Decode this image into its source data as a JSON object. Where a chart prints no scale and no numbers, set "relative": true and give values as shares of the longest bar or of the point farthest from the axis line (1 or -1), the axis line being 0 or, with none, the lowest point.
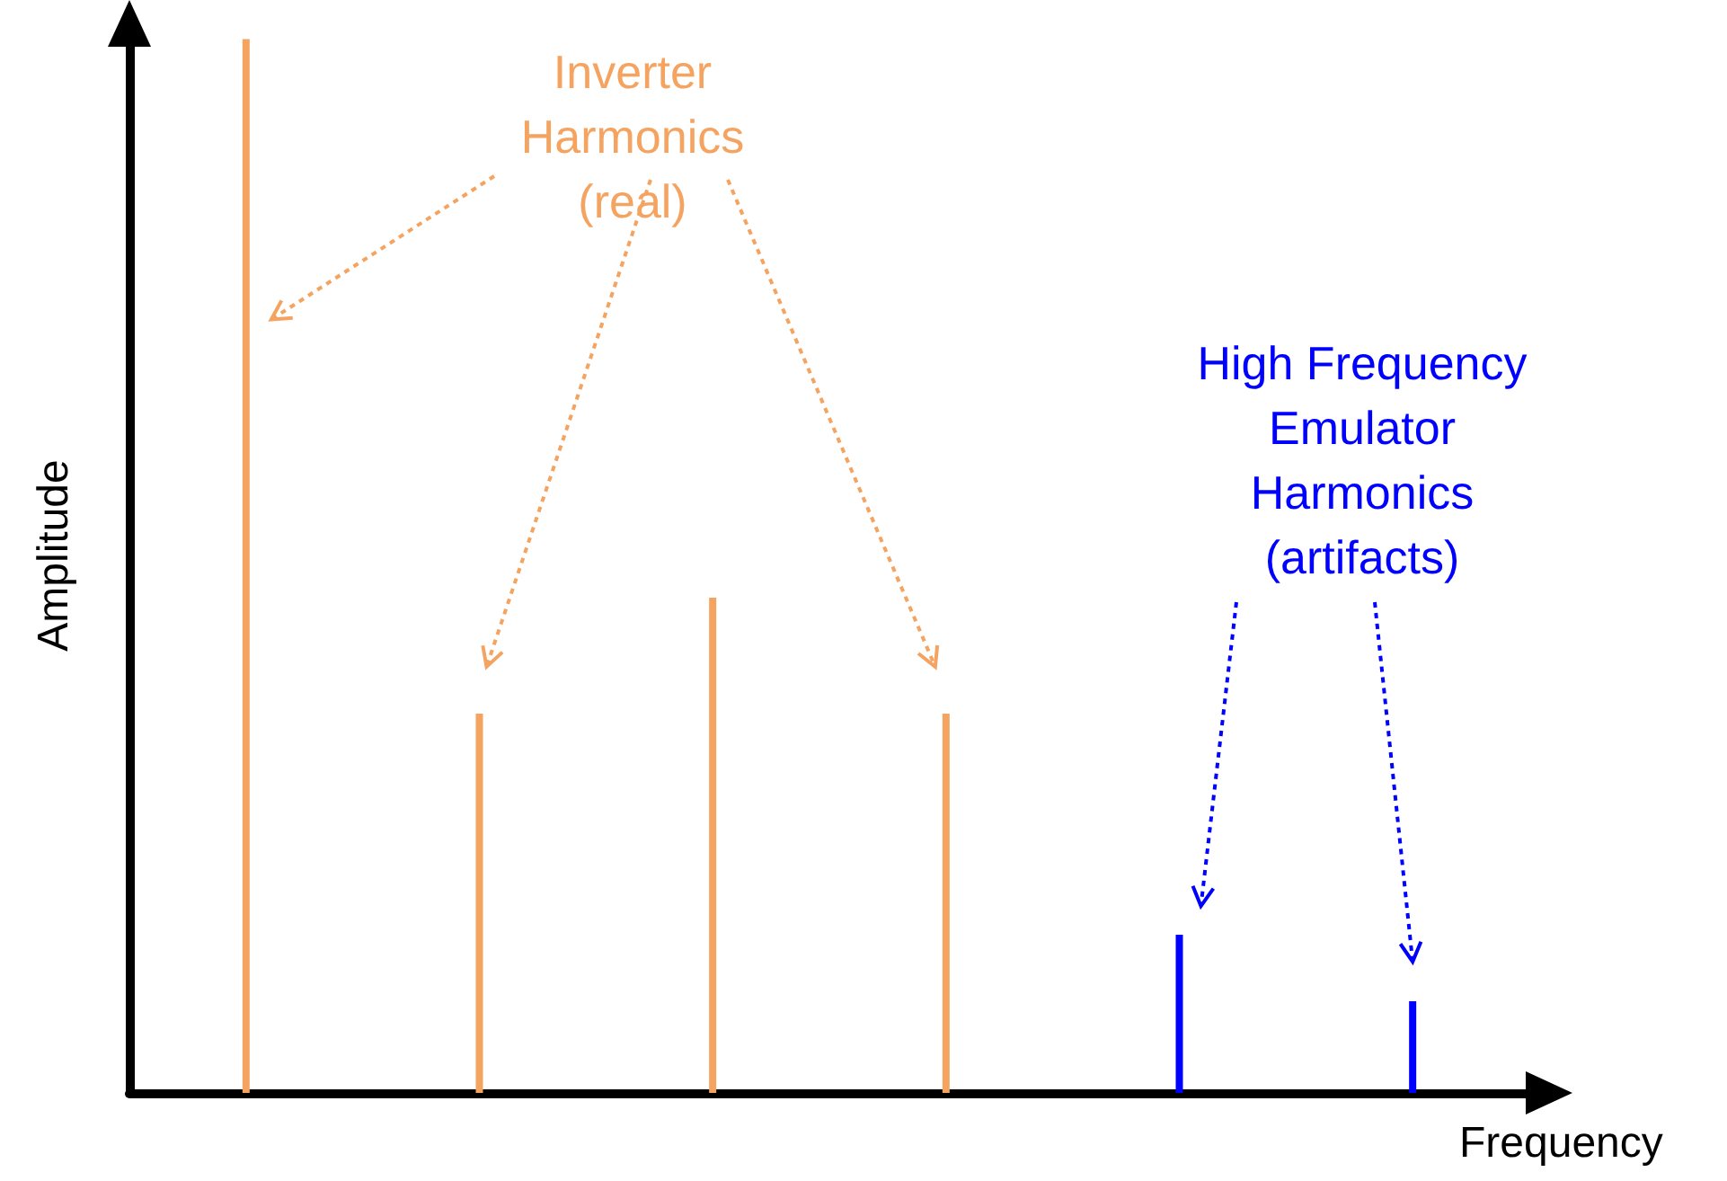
{
  "chart_data": {
    "type": "bar",
    "relative": true,
    "xlabel": "Frequency",
    "ylabel": "Amplitude",
    "categories": [
      null,
      null,
      null,
      null,
      null,
      null
    ],
    "values": [
      1,
      0.36,
      0.47,
      0.36,
      0.15,
      0.087
    ],
    "colors": [
      "#f4a460",
      "#f4a460",
      "#f4a460",
      "#f4a460",
      "#0000ff",
      "#0000ff"
    ],
    "annotations": [
      "Inverter\nHarmonics\n(real)",
      "High Frequency\nEmulator\nHarmonics\n(artifacts)"
    ],
    "grid": false
  }
}
